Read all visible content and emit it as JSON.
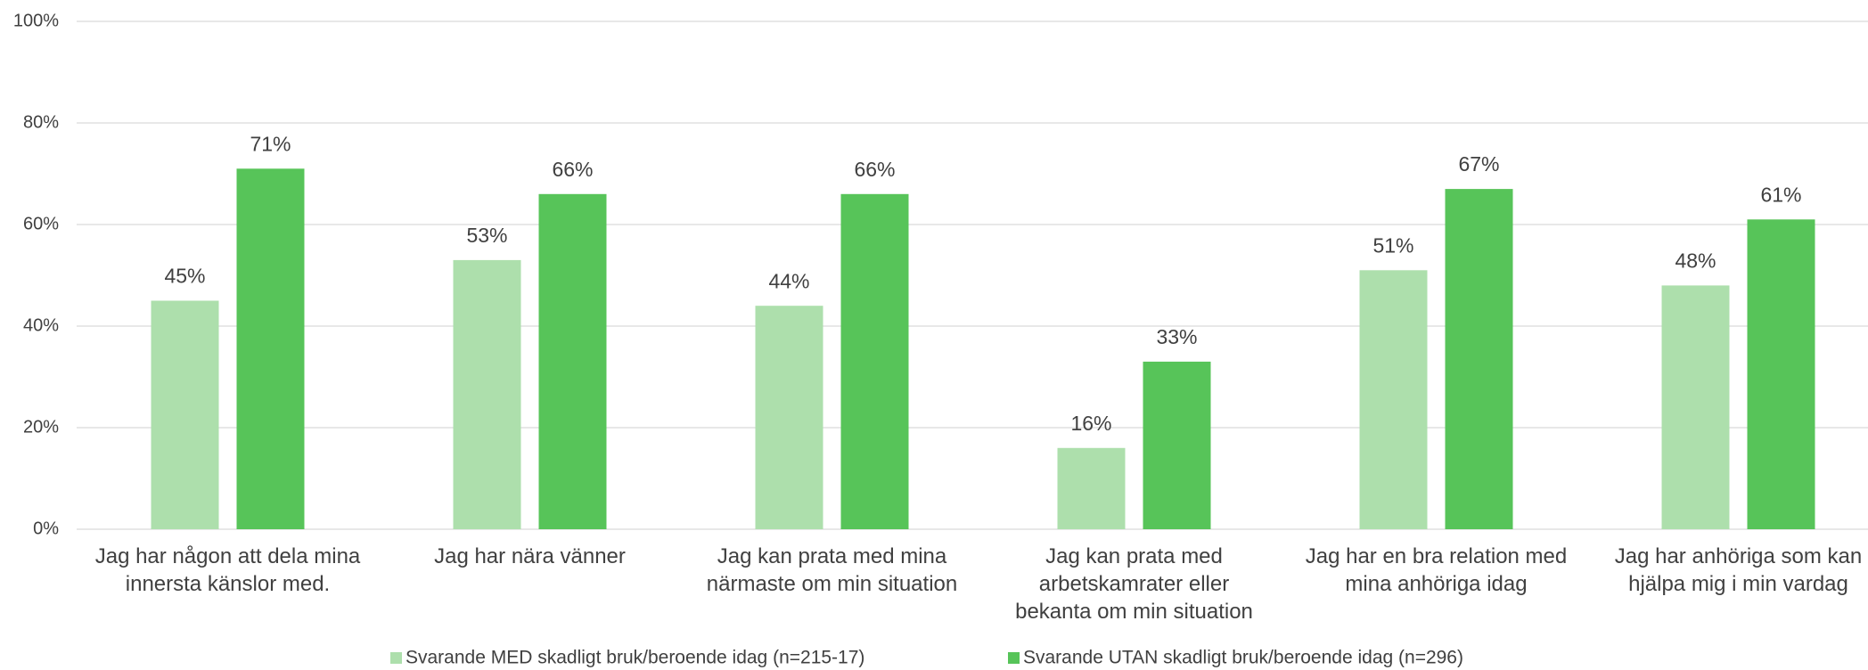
{
  "chart_data": {
    "type": "bar",
    "categories": [
      [
        "Jag har någon att  dela mina",
        "innersta känslor med."
      ],
      [
        "Jag har nära vänner"
      ],
      [
        "Jag kan prata med  mina",
        "närmaste om min situation"
      ],
      [
        "Jag kan prata med",
        "arbetskamrater eller",
        "bekanta om min situation"
      ],
      [
        "Jag har en bra relation med",
        "mina anhöriga idag"
      ],
      [
        "Jag har anhöriga som kan",
        "hjälpa mig i min vardag"
      ]
    ],
    "series": [
      {
        "name": "Svarande MED skadligt bruk/beroende idag (n=215-17)",
        "color": "#addfac",
        "values": [
          45,
          53,
          44,
          16,
          51,
          48
        ],
        "value_labels": [
          "45%",
          "53%",
          "44%",
          "16%",
          "51%",
          "48%"
        ]
      },
      {
        "name": "Svarande UTAN skadligt bruk/beroende idag (n=296)",
        "color": "#57c459",
        "values": [
          71,
          66,
          66,
          33,
          67,
          61
        ],
        "value_labels": [
          "71%",
          "66%",
          "66%",
          "33%",
          "67%",
          "61%"
        ]
      }
    ],
    "ylim": [
      0,
      100
    ],
    "yticks": [
      {
        "value": 0,
        "label": "0%"
      },
      {
        "value": 20,
        "label": "20%"
      },
      {
        "value": 40,
        "label": "40%"
      },
      {
        "value": 60,
        "label": "60%"
      },
      {
        "value": 80,
        "label": "80%"
      },
      {
        "value": 100,
        "label": "100%"
      }
    ],
    "grid": true,
    "legend": "bottom"
  }
}
